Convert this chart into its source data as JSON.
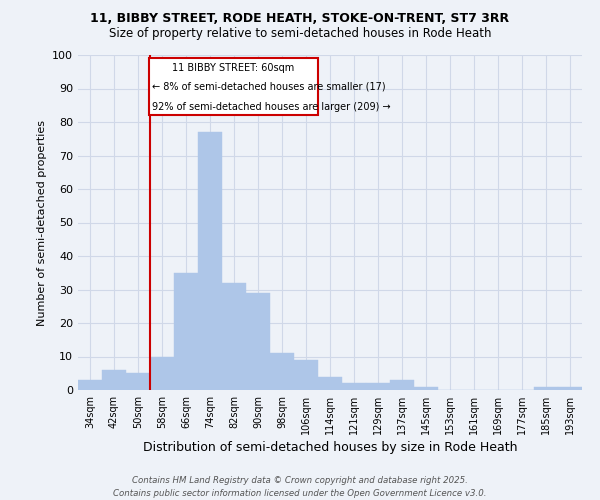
{
  "title_line1": "11, BIBBY STREET, RODE HEATH, STOKE-ON-TRENT, ST7 3RR",
  "title_line2": "Size of property relative to semi-detached houses in Rode Heath",
  "categories": [
    "34sqm",
    "42sqm",
    "50sqm",
    "58sqm",
    "66sqm",
    "74sqm",
    "82sqm",
    "90sqm",
    "98sqm",
    "106sqm",
    "114sqm",
    "121sqm",
    "129sqm",
    "137sqm",
    "145sqm",
    "153sqm",
    "161sqm",
    "169sqm",
    "177sqm",
    "185sqm",
    "193sqm"
  ],
  "values": [
    3,
    6,
    5,
    10,
    35,
    77,
    32,
    29,
    11,
    9,
    4,
    2,
    2,
    3,
    1,
    0,
    0,
    0,
    0,
    1,
    1
  ],
  "bar_color": "#aec6e8",
  "bar_edgecolor": "#aec6e8",
  "subject_label": "11 BIBBY STREET: 60sqm",
  "annotation_smaller": "← 8% of semi-detached houses are smaller (17)",
  "annotation_larger": "92% of semi-detached houses are larger (209) →",
  "xlabel": "Distribution of semi-detached houses by size in Rode Heath",
  "ylabel": "Number of semi-detached properties",
  "ylim": [
    0,
    100
  ],
  "yticks": [
    0,
    10,
    20,
    30,
    40,
    50,
    60,
    70,
    80,
    90,
    100
  ],
  "grid_color": "#d0d8e8",
  "background_color": "#eef2f8",
  "box_color": "#cc0000",
  "footer": "Contains HM Land Registry data © Crown copyright and database right 2025.\nContains public sector information licensed under the Open Government Licence v3.0."
}
